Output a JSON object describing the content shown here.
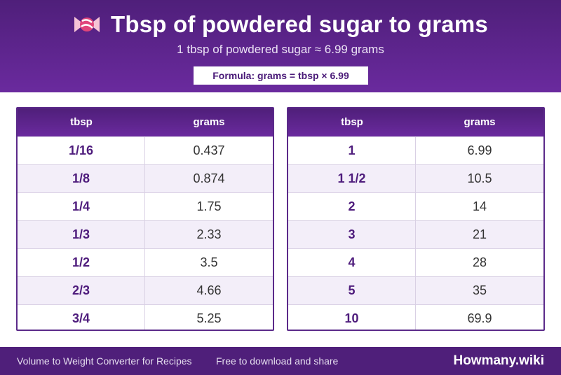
{
  "header": {
    "title": "Tbsp of powdered sugar to grams",
    "subtitle": "1 tbsp of powdered sugar ≈ 6.99 grams",
    "formula": "Formula: grams = tbsp × 6.99",
    "icon": "candy-icon"
  },
  "tables": {
    "left": {
      "col1": "tbsp",
      "col2": "grams",
      "rows": [
        {
          "tbsp": "1/16",
          "grams": "0.437"
        },
        {
          "tbsp": "1/8",
          "grams": "0.874"
        },
        {
          "tbsp": "1/4",
          "grams": "1.75"
        },
        {
          "tbsp": "1/3",
          "grams": "2.33"
        },
        {
          "tbsp": "1/2",
          "grams": "3.5"
        },
        {
          "tbsp": "2/3",
          "grams": "4.66"
        },
        {
          "tbsp": "3/4",
          "grams": "5.25"
        }
      ]
    },
    "right": {
      "col1": "tbsp",
      "col2": "grams",
      "rows": [
        {
          "tbsp": "1",
          "grams": "6.99"
        },
        {
          "tbsp": "1 1/2",
          "grams": "10.5"
        },
        {
          "tbsp": "2",
          "grams": "14"
        },
        {
          "tbsp": "3",
          "grams": "21"
        },
        {
          "tbsp": "4",
          "grams": "28"
        },
        {
          "tbsp": "5",
          "grams": "35"
        },
        {
          "tbsp": "10",
          "grams": "69.9"
        }
      ]
    }
  },
  "footer": {
    "left": "Volume to Weight Converter for Recipes",
    "middle": "Free to download and share",
    "brand": "Howmany.wiki"
  },
  "colors": {
    "primary": "#4f1f7a",
    "accent": "#6a2a9e",
    "row_alt": "#f3eef9"
  }
}
